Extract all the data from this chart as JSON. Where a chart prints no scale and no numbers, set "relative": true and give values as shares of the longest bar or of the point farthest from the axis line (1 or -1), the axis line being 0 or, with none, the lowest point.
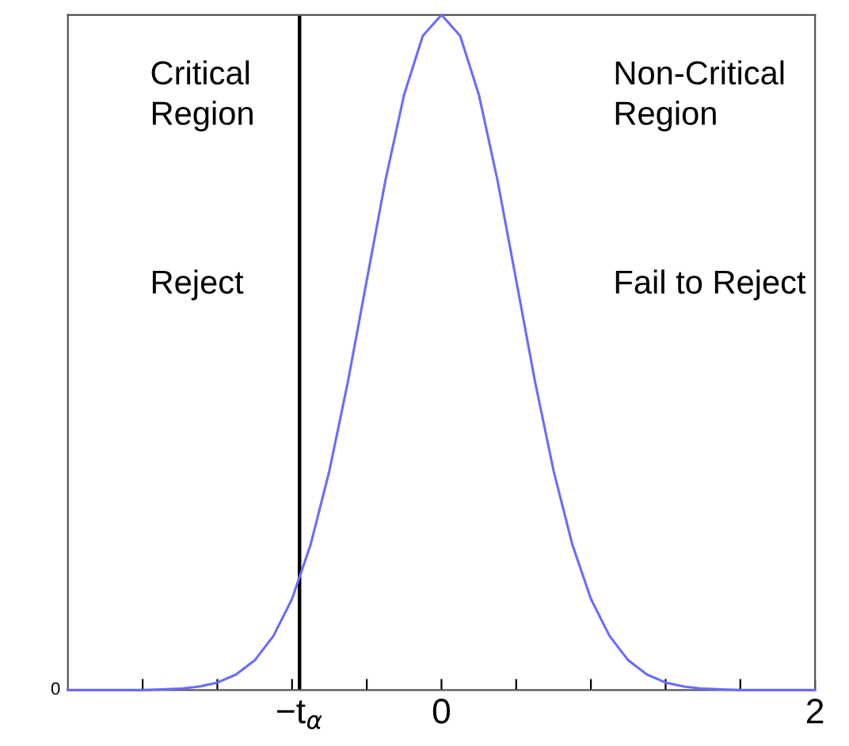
{
  "chart_data": {
    "type": "line",
    "relative": true,
    "grid": false,
    "marker": "none",
    "line_style": "solid",
    "x": [
      -2,
      -1.9,
      -1.8,
      -1.7,
      -1.6,
      -1.5,
      -1.4,
      -1.3,
      -1.2,
      -1.1,
      -1.0,
      -0.9,
      -0.8,
      -0.7,
      -0.6,
      -0.5,
      -0.4,
      -0.3,
      -0.2,
      -0.1,
      0,
      0.1,
      0.2,
      0.3,
      0.4,
      0.5,
      0.6,
      0.7,
      0.8,
      0.9,
      1.0,
      1.1,
      1.2,
      1.3,
      1.4,
      1.5,
      1.6,
      1.7,
      1.8,
      1.9,
      2
    ],
    "series": [
      {
        "color": "#6a6aff",
        "values": [
          0,
          0,
          0,
          0,
          0,
          0.001,
          0.002,
          0.005,
          0.011,
          0.023,
          0.044,
          0.08,
          0.135,
          0.216,
          0.325,
          0.458,
          0.607,
          0.755,
          0.882,
          0.969,
          1,
          0.969,
          0.882,
          0.755,
          0.607,
          0.458,
          0.325,
          0.216,
          0.135,
          0.08,
          0.044,
          0.023,
          0.011,
          0.005,
          0.002,
          0.001,
          0,
          0,
          0,
          0,
          0
        ]
      }
    ],
    "xlim": [
      -2,
      2
    ],
    "xticks": [
      {
        "value": -1.6,
        "label": null
      },
      {
        "value": -1.2,
        "label": null
      },
      {
        "value": -0.8,
        "label": null
      },
      {
        "value": -0.76,
        "label": "−t$_{α}$"
      },
      {
        "value": -0.4,
        "label": null
      },
      0,
      {
        "value": 0.4,
        "label": null
      },
      {
        "value": 0.8,
        "label": null
      },
      {
        "value": 1.2,
        "label": null
      },
      {
        "value": 1.6,
        "label": null
      },
      2
    ],
    "ref_lines": [
      {
        "axis": "x",
        "value": -0.76,
        "color": "#000000"
      }
    ],
    "annotations": [
      "Critical\nRegion",
      "Reject",
      "Non-Critical\nRegion",
      "Fail to Reject",
      "0"
    ]
  }
}
